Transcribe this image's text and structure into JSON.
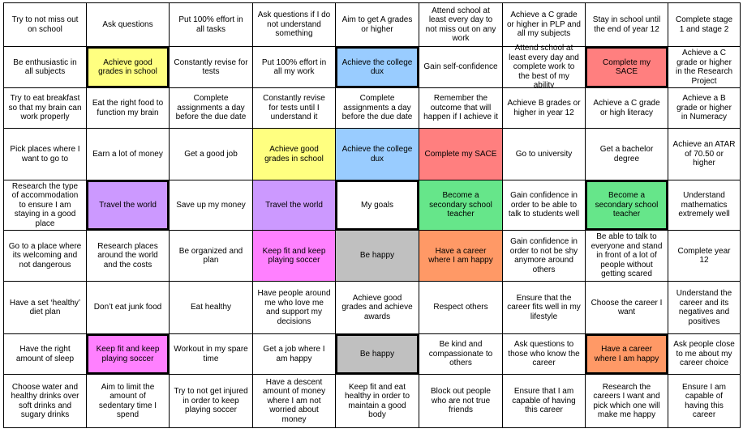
{
  "grid": {
    "rows": [
      [
        "Try to not miss out on school",
        "Ask questions",
        "Put 100% effort in all tasks",
        "Ask questions if I do not understand something",
        "Aim to get A grades or higher",
        "Attend school at least every day to not miss out on any work",
        "Achieve a C grade or higher in PLP and all my subjects",
        "Stay in school until the end of year 12",
        "Complete stage 1 and stage 2"
      ],
      [
        "Be enthusiastic in all subjects",
        "Achieve good grades in school",
        "Constantly revise for tests",
        "Put 100% effort in all my work",
        "Achieve the college dux",
        "Gain self-confidence",
        "Attend school  at least every day and complete work to the best of my ability",
        "Complete my SACE",
        "Achieve a C grade or higher in the Research Project"
      ],
      [
        "Try to eat breakfast so that my brain can work properly",
        "Eat the right food to function my brain",
        "Complete assignments a day before the due date",
        "Constantly revise for tests until I understand it",
        "Complete assignments a day before the due date",
        "Remember the outcome that will happen if I achieve it",
        "Achieve B grades or higher in year 12",
        "Achieve a C grade or high literacy",
        "Achieve a B grade or higher in Numeracy"
      ],
      [
        "Pick places where I want to go to",
        "Earn a lot of money",
        "Get a good job",
        "Achieve good grades in school",
        "Achieve the college dux",
        "Complete my SACE",
        "Go to university",
        "Get a bachelor degree",
        "Achieve an ATAR of 70.50 or higher"
      ],
      [
        "Research the type of accommodation to ensure I am staying in a good place",
        "Travel the world",
        "Save up my money",
        "Travel the world",
        "My goals",
        "Become a secondary school teacher",
        "Gain confidence in order to be able to talk to students well",
        "Become a secondary school teacher",
        "Understand mathematics extremely well"
      ],
      [
        "Go to a place where its welcoming and not dangerous",
        "Research places around the world and the costs",
        "Be organized and plan",
        "Keep fit and keep playing soccer",
        "Be happy",
        "Have a career where I am happy",
        "Gain confidence in order to not be shy anymore around others",
        "Be able to talk to everyone and stand in front of a lot of people without getting scared",
        "Complete year 12"
      ],
      [
        "Have a set ‘healthy’ diet plan",
        "Don’t eat junk food",
        "Eat healthy",
        "Have people around me who love me and support my decisions",
        "Achieve good grades and achieve awards",
        "Respect others",
        "Ensure that the career fits well in my lifestyle",
        "Choose the career I want",
        "Understand the career and its negatives and positives"
      ],
      [
        "Have the right amount of sleep",
        "Keep fit and keep playing soccer",
        "Workout in my spare time",
        "Get a job where I am happy",
        "Be happy",
        "Be kind and compassionate to others",
        "Ask questions to those who know the career",
        "Have a career where I am happy",
        "Ask people close to me about my career choice"
      ],
      [
        "Choose water and healthy drinks over soft drinks and sugary drinks",
        "Aim to limit the amount of sedentary time I spend",
        "Try to not get injured in order to keep playing soccer",
        "Have a descent amount of money where I am not worried about money",
        "Keep fit and eat healthy in order to maintain a good body",
        "Block out people who are not true friends",
        "Ensure that I am capable of having this career",
        "Research the careers I want and pick which one will make me happy",
        "Ensure I am capable of having this career"
      ]
    ]
  }
}
